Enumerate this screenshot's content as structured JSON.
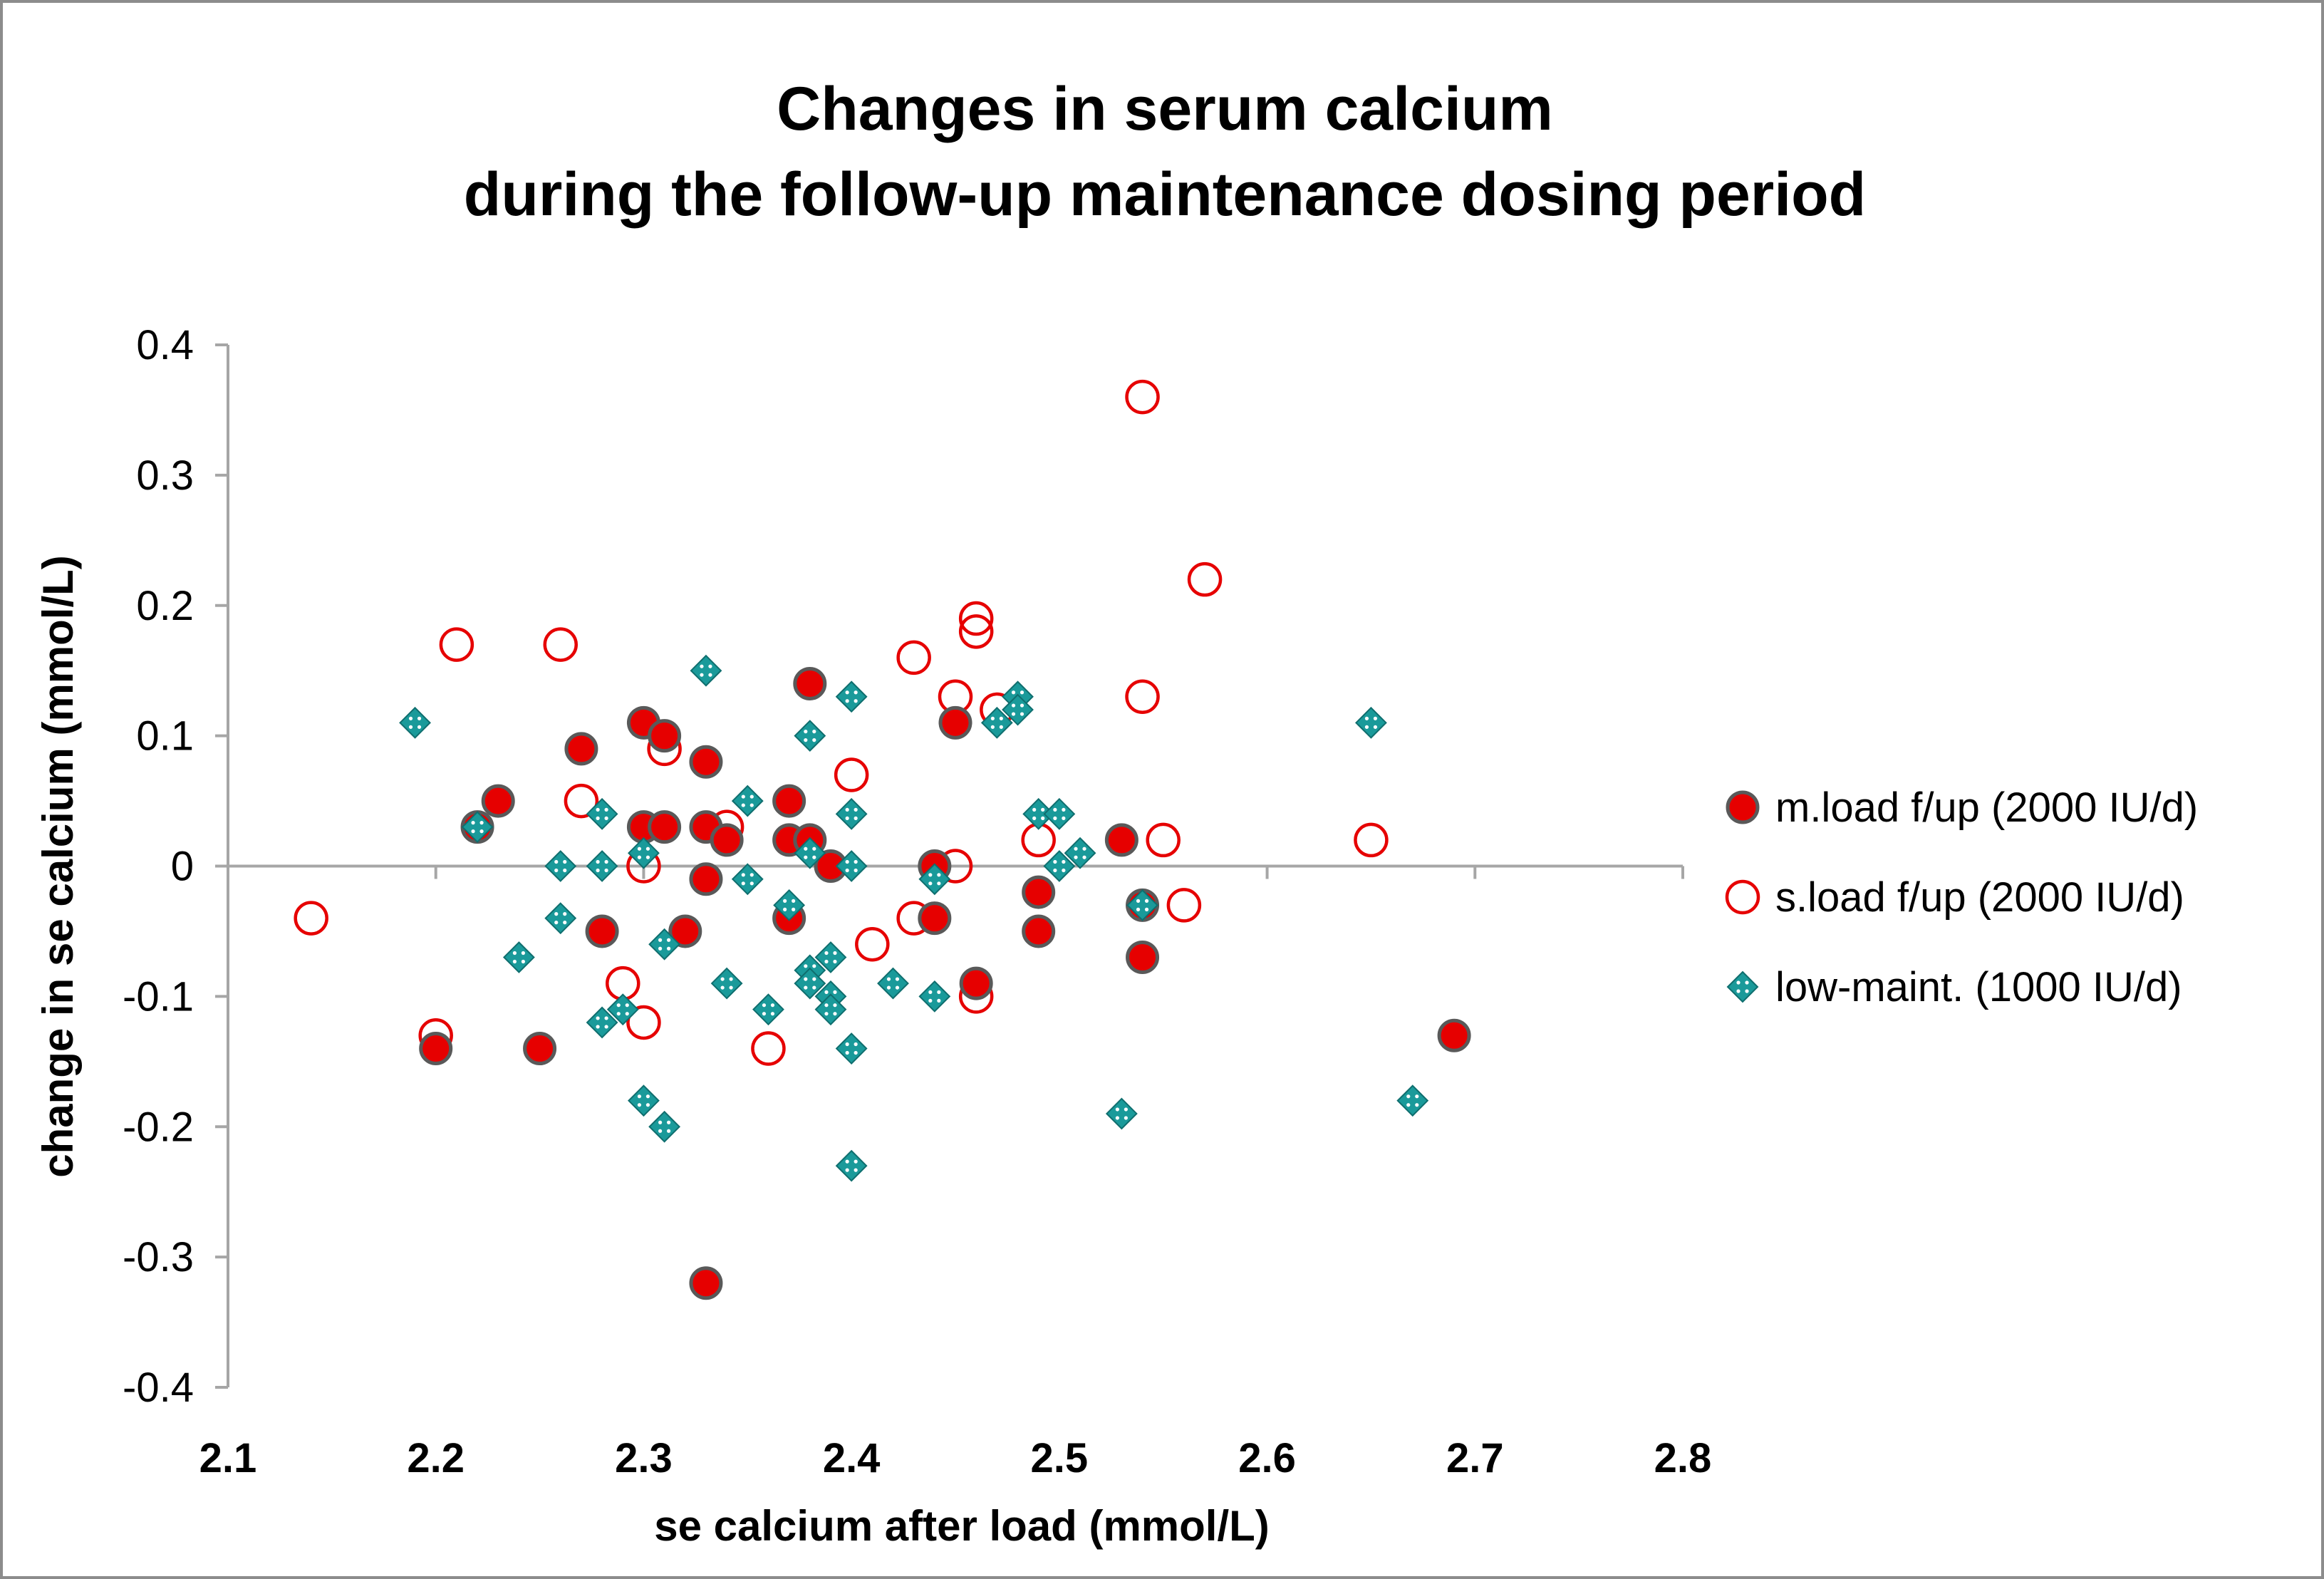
{
  "chart_data": {
    "type": "scatter",
    "title": [
      "Changes in serum calcium",
      "during the follow-up maintenance dosing period"
    ],
    "xlabel": "se calcium after load (mmol/L)",
    "ylabel": "change in se calcium (mmol/L)",
    "xlim": [
      2.1,
      2.8
    ],
    "ylim": [
      -0.4,
      0.4
    ],
    "xticks": [
      "2.1",
      "2.2",
      "2.3",
      "2.4",
      "2.5",
      "2.6",
      "2.7",
      "2.8"
    ],
    "yticks": [
      "0.4",
      "0.3",
      "0.2",
      "0.1",
      "0",
      "-0.1",
      "-0.2",
      "-0.3",
      "-0.4"
    ],
    "grid": false,
    "legend_position": "right",
    "series": [
      {
        "name": "m.load f/up (2000 IU/d)",
        "marker": "filled-circle",
        "color": "#e60000",
        "edge": "#595959",
        "points": [
          [
            2.2,
            -0.14
          ],
          [
            2.22,
            0.03
          ],
          [
            2.23,
            0.05
          ],
          [
            2.25,
            -0.14
          ],
          [
            2.27,
            0.09
          ],
          [
            2.28,
            -0.05
          ],
          [
            2.3,
            0.11
          ],
          [
            2.3,
            0.03
          ],
          [
            2.31,
            0.1
          ],
          [
            2.31,
            0.03
          ],
          [
            2.32,
            -0.05
          ],
          [
            2.33,
            0.08
          ],
          [
            2.33,
            0.03
          ],
          [
            2.33,
            -0.01
          ],
          [
            2.33,
            -0.32
          ],
          [
            2.34,
            0.02
          ],
          [
            2.37,
            0.05
          ],
          [
            2.37,
            0.02
          ],
          [
            2.37,
            -0.04
          ],
          [
            2.38,
            0.14
          ],
          [
            2.38,
            0.02
          ],
          [
            2.39,
            0.0
          ],
          [
            2.44,
            0.0
          ],
          [
            2.44,
            -0.04
          ],
          [
            2.45,
            0.11
          ],
          [
            2.46,
            -0.09
          ],
          [
            2.49,
            -0.02
          ],
          [
            2.49,
            -0.05
          ],
          [
            2.53,
            0.02
          ],
          [
            2.54,
            -0.03
          ],
          [
            2.54,
            -0.07
          ],
          [
            2.69,
            -0.13
          ]
        ]
      },
      {
        "name": "s.load f/up (2000 IU/d)",
        "marker": "open-circle",
        "color": "#e60000",
        "points": [
          [
            2.14,
            -0.04
          ],
          [
            2.2,
            -0.13
          ],
          [
            2.21,
            0.17
          ],
          [
            2.26,
            0.17
          ],
          [
            2.27,
            0.05
          ],
          [
            2.29,
            -0.09
          ],
          [
            2.3,
            0.0
          ],
          [
            2.3,
            -0.12
          ],
          [
            2.31,
            0.09
          ],
          [
            2.34,
            0.03
          ],
          [
            2.36,
            -0.14
          ],
          [
            2.4,
            0.07
          ],
          [
            2.41,
            -0.06
          ],
          [
            2.43,
            0.16
          ],
          [
            2.43,
            -0.04
          ],
          [
            2.45,
            0.13
          ],
          [
            2.45,
            0.0
          ],
          [
            2.46,
            0.19
          ],
          [
            2.46,
            0.18
          ],
          [
            2.46,
            -0.1
          ],
          [
            2.47,
            0.12
          ],
          [
            2.49,
            0.02
          ],
          [
            2.54,
            0.36
          ],
          [
            2.54,
            0.13
          ],
          [
            2.55,
            0.02
          ],
          [
            2.56,
            -0.03
          ],
          [
            2.57,
            0.22
          ],
          [
            2.65,
            0.02
          ]
        ]
      },
      {
        "name": "low-maint. (1000 IU/d)",
        "marker": "diamond",
        "color": "#1a9a9a",
        "points": [
          [
            2.19,
            0.11
          ],
          [
            2.22,
            0.03
          ],
          [
            2.24,
            -0.07
          ],
          [
            2.26,
            0.0
          ],
          [
            2.26,
            -0.04
          ],
          [
            2.28,
            0.04
          ],
          [
            2.28,
            0.0
          ],
          [
            2.28,
            -0.12
          ],
          [
            2.29,
            -0.11
          ],
          [
            2.3,
            0.01
          ],
          [
            2.3,
            -0.18
          ],
          [
            2.31,
            -0.06
          ],
          [
            2.31,
            -0.2
          ],
          [
            2.33,
            0.15
          ],
          [
            2.34,
            -0.09
          ],
          [
            2.35,
            0.05
          ],
          [
            2.35,
            -0.01
          ],
          [
            2.36,
            -0.11
          ],
          [
            2.37,
            -0.03
          ],
          [
            2.38,
            0.1
          ],
          [
            2.38,
            0.01
          ],
          [
            2.38,
            -0.08
          ],
          [
            2.38,
            -0.09
          ],
          [
            2.39,
            -0.07
          ],
          [
            2.39,
            -0.1
          ],
          [
            2.39,
            -0.11
          ],
          [
            2.4,
            0.13
          ],
          [
            2.4,
            0.04
          ],
          [
            2.4,
            0.0
          ],
          [
            2.4,
            -0.14
          ],
          [
            2.4,
            -0.23
          ],
          [
            2.42,
            -0.09
          ],
          [
            2.44,
            -0.01
          ],
          [
            2.44,
            -0.1
          ],
          [
            2.47,
            0.11
          ],
          [
            2.48,
            0.13
          ],
          [
            2.48,
            0.12
          ],
          [
            2.49,
            0.04
          ],
          [
            2.5,
            0.04
          ],
          [
            2.5,
            0.0
          ],
          [
            2.51,
            0.01
          ],
          [
            2.53,
            -0.19
          ],
          [
            2.54,
            -0.03
          ],
          [
            2.65,
            0.11
          ],
          [
            2.67,
            -0.18
          ]
        ]
      }
    ]
  }
}
